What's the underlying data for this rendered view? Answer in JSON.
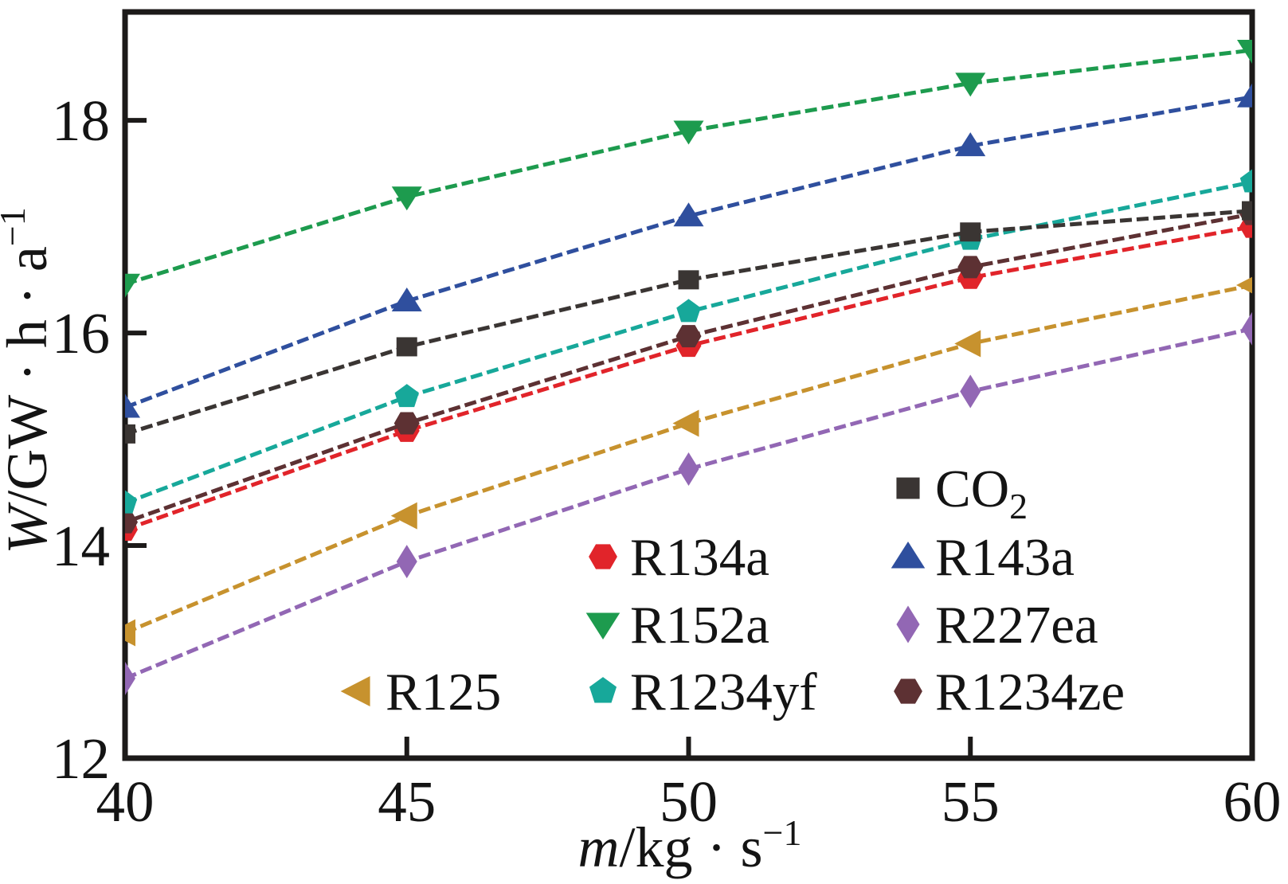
{
  "chart_data": {
    "type": "line",
    "title": "",
    "xlabel": {
      "variable": "m",
      "units": "/kg · s",
      "exponent": "−1"
    },
    "ylabel": {
      "variable": "W",
      "units": "/GW · h · a",
      "exponent": "−1"
    },
    "x_values": [
      40,
      45,
      50,
      55,
      60
    ],
    "xticks": [
      "40",
      "45",
      "50",
      "55",
      "60"
    ],
    "yticks": [
      "12",
      "14",
      "16",
      "18"
    ],
    "xlim": [
      40,
      60
    ],
    "ylim": [
      12,
      19.02
    ],
    "grid": false,
    "frame": true,
    "legend_position": "inside lower-right, two columns, R125 offset left",
    "series": [
      {
        "name": "CO2",
        "legend_base": "CO",
        "legend_sub": "2",
        "color": "#3a3533",
        "marker": "square",
        "values": [
          15.05,
          15.87,
          16.5,
          16.95,
          17.15
        ]
      },
      {
        "name": "R134a",
        "legend_base": "R134a",
        "color": "#e1242a",
        "marker": "hexagon",
        "values": [
          14.15,
          15.08,
          15.88,
          16.52,
          17.0
        ]
      },
      {
        "name": "R143a",
        "legend_base": "R143a",
        "color": "#2f4f9e",
        "marker": "triangle-up",
        "values": [
          15.3,
          16.3,
          17.1,
          17.76,
          18.22
        ]
      },
      {
        "name": "R152a",
        "legend_base": "R152a",
        "color": "#1d9b4e",
        "marker": "triangle-down",
        "values": [
          16.46,
          17.28,
          17.9,
          18.35,
          18.66
        ]
      },
      {
        "name": "R227ea",
        "legend_base": "R227ea",
        "color": "#9267b4",
        "marker": "diamond",
        "values": [
          12.75,
          13.85,
          14.72,
          15.45,
          16.04
        ]
      },
      {
        "name": "R125",
        "legend_base": "R125",
        "color": "#c7922e",
        "marker": "triangle-left",
        "values": [
          13.18,
          14.28,
          15.15,
          15.9,
          16.45
        ]
      },
      {
        "name": "R1234yf",
        "legend_base": "R1234yf",
        "color": "#17a89a",
        "marker": "pentagon",
        "values": [
          14.4,
          15.4,
          16.2,
          16.88,
          17.42
        ]
      },
      {
        "name": "R1234ze",
        "legend_base": "R1234ze",
        "color": "#5d3133",
        "marker": "hexagon",
        "values": [
          14.22,
          15.15,
          15.97,
          16.62,
          17.12
        ]
      }
    ]
  }
}
